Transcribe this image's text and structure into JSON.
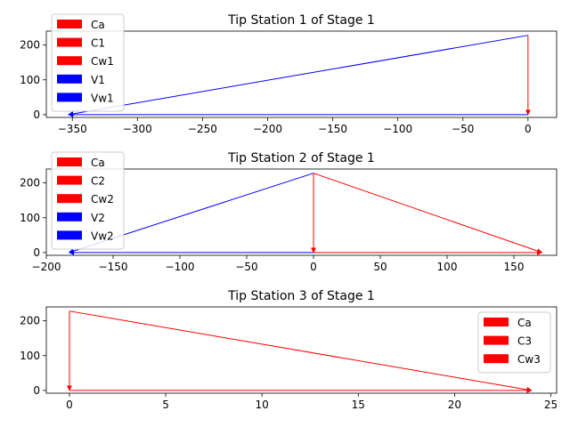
{
  "chart_data": [
    {
      "type": "line",
      "title": "Tip Station 1 of Stage 1",
      "xlim": [
        -370,
        22
      ],
      "ylim": [
        -8,
        240
      ],
      "xticks": [
        -350,
        -300,
        -250,
        -200,
        -150,
        -100,
        -50,
        0
      ],
      "yticks": [
        0,
        100,
        200
      ],
      "legend_position": "top-left",
      "series": [
        {
          "name": "Ca",
          "color": "#ff0000",
          "from": [
            0,
            0
          ],
          "to": [
            0,
            0
          ]
        },
        {
          "name": "C1",
          "color": "#ff0000",
          "from": [
            0,
            228
          ],
          "to": [
            0,
            0
          ]
        },
        {
          "name": "Cw1",
          "color": "#ff0000",
          "from": [
            0,
            0
          ],
          "to": [
            0,
            0
          ]
        },
        {
          "name": "V1",
          "color": "#0000ff",
          "from": [
            0,
            0
          ],
          "to": [
            -353,
            0
          ]
        },
        {
          "name": "Vw1",
          "color": "#0000ff",
          "from": [
            0,
            228
          ],
          "to": [
            -353,
            0
          ]
        }
      ]
    },
    {
      "type": "line",
      "title": "Tip Station 2 of Stage 1",
      "xlim": [
        -200,
        182
      ],
      "ylim": [
        -8,
        240
      ],
      "xticks": [
        -200,
        -150,
        -100,
        -50,
        0,
        50,
        100,
        150
      ],
      "yticks": [
        0,
        100,
        200
      ],
      "legend_position": "top-left",
      "series": [
        {
          "name": "Ca",
          "color": "#ff0000",
          "from": [
            0,
            0
          ],
          "to": [
            171,
            0
          ]
        },
        {
          "name": "C2",
          "color": "#ff0000",
          "from": [
            0,
            228
          ],
          "to": [
            0,
            0
          ]
        },
        {
          "name": "Cw2",
          "color": "#ff0000",
          "from": [
            0,
            228
          ],
          "to": [
            171,
            0
          ]
        },
        {
          "name": "V2",
          "color": "#0000ff",
          "from": [
            0,
            0
          ],
          "to": [
            -183,
            0
          ]
        },
        {
          "name": "Vw2",
          "color": "#0000ff",
          "from": [
            0,
            228
          ],
          "to": [
            -183,
            0
          ]
        }
      ]
    },
    {
      "type": "line",
      "title": "Tip Station 3 of Stage 1",
      "xlim": [
        -1.2,
        25.3
      ],
      "ylim": [
        -8,
        240
      ],
      "xticks": [
        0,
        5,
        10,
        15,
        20,
        25
      ],
      "yticks": [
        0,
        100,
        200
      ],
      "legend_position": "upper-right",
      "series": [
        {
          "name": "Ca",
          "color": "#ff0000",
          "from": [
            0,
            0
          ],
          "to": [
            24,
            0
          ]
        },
        {
          "name": "C3",
          "color": "#ff0000",
          "from": [
            0,
            228
          ],
          "to": [
            0,
            0
          ]
        },
        {
          "name": "Cw3",
          "color": "#ff0000",
          "from": [
            0,
            228
          ],
          "to": [
            24,
            0
          ]
        }
      ]
    }
  ]
}
